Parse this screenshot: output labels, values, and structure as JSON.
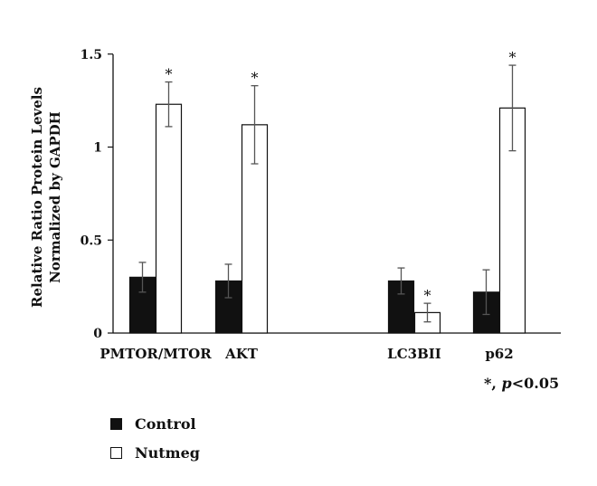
{
  "chart_data": {
    "type": "bar",
    "ylabel": "Relative Ratio Protein Levels Normalized by GAPDH",
    "ylabel_lines": [
      "Relative Ratio Protein Levels",
      "Normalized by GAPDH"
    ],
    "ylim": [
      0,
      1.5
    ],
    "yticks": [
      "0",
      "0.5",
      "1",
      "1.5"
    ],
    "categories": [
      "PMTOR/MTOR",
      "AKT",
      "LC3BII",
      "p62"
    ],
    "series": [
      {
        "name": "Control",
        "color": "#111111",
        "values": [
          0.3,
          0.28,
          0.28,
          0.22
        ],
        "errors": [
          0.08,
          0.09,
          0.07,
          0.12
        ]
      },
      {
        "name": "Nutmeg",
        "color": "#ffffff",
        "values": [
          1.23,
          1.12,
          0.11,
          1.21
        ],
        "errors": [
          0.12,
          0.21,
          0.05,
          0.23
        ]
      }
    ],
    "significance_marker": "*",
    "significant": [
      true,
      true,
      true,
      true
    ],
    "annotation": {
      "symbol": "*, ",
      "pvar": "p",
      "rest": "<0.05"
    },
    "grid": false,
    "legend_position": "bottom-left"
  }
}
